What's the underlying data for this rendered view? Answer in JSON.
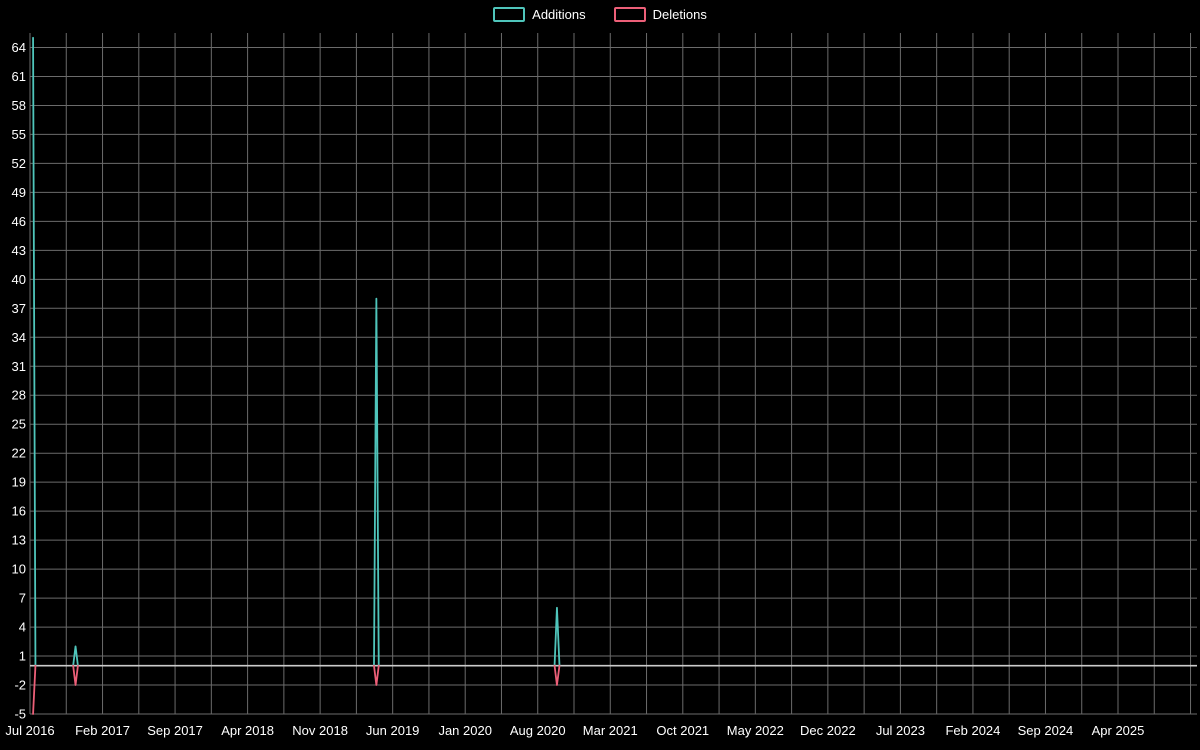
{
  "chart_data": {
    "type": "line",
    "title": "",
    "xlabel": "",
    "ylabel": "",
    "grid": true,
    "legend_position": "top",
    "x_domain": [
      "2016-07-01",
      "2025-11-20"
    ],
    "x_tick_interval_months": 7,
    "x_tick_labels": [
      "Jul 2016",
      "Feb 2017",
      "Sep 2017",
      "Apr 2018",
      "Nov 2018",
      "Jun 2019",
      "Jan 2020",
      "Aug 2020",
      "Mar 2021",
      "Oct 2021",
      "May 2022",
      "Dec 2022",
      "Jul 2023",
      "Feb 2024",
      "Sep 2024",
      "Apr 2025"
    ],
    "y_ticks": [
      -5,
      -2,
      1,
      4,
      7,
      10,
      13,
      16,
      19,
      22,
      25,
      28,
      31,
      34,
      37,
      40,
      43,
      46,
      49,
      52,
      55,
      58,
      61,
      64
    ],
    "ylim": [
      -5,
      65.5
    ],
    "series": [
      {
        "name": "Additions",
        "color": "#4fc5bb",
        "segments": [
          [
            [
              "2016-07-10",
              65
            ],
            [
              "2016-07-17",
              0
            ]
          ],
          [
            [
              "2016-11-06",
              0
            ],
            [
              "2016-11-13",
              2
            ],
            [
              "2016-11-20",
              0
            ]
          ],
          [
            [
              "2019-04-07",
              0
            ],
            [
              "2019-04-14",
              38
            ],
            [
              "2019-04-21",
              0
            ]
          ],
          [
            [
              "2020-09-20",
              0
            ],
            [
              "2020-09-27",
              6
            ],
            [
              "2020-10-04",
              0
            ]
          ]
        ]
      },
      {
        "name": "Deletions",
        "color": "#ec5f78",
        "segments": [
          [
            [
              "2016-07-10",
              -5
            ],
            [
              "2016-07-17",
              0
            ]
          ],
          [
            [
              "2016-11-06",
              0
            ],
            [
              "2016-11-13",
              -2
            ],
            [
              "2016-11-20",
              0
            ]
          ],
          [
            [
              "2019-04-07",
              0
            ],
            [
              "2019-04-14",
              -2
            ],
            [
              "2019-04-21",
              0
            ]
          ],
          [
            [
              "2020-09-20",
              0
            ],
            [
              "2020-09-27",
              -2
            ],
            [
              "2020-10-04",
              0
            ]
          ]
        ]
      }
    ],
    "colors": {
      "background": "#000000",
      "grid": "#6b6b6b",
      "zero_line": "#cccccc",
      "text": "#ffffff"
    }
  }
}
